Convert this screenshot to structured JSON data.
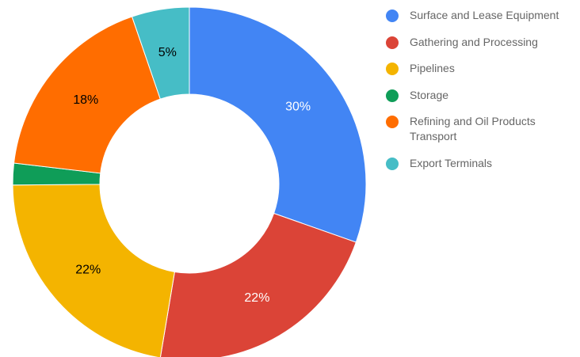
{
  "chart_data": {
    "type": "pie",
    "subtype": "donut",
    "title": "",
    "legend_position": "right",
    "start_angle_deg": 0,
    "direction": "clockwise",
    "slices": [
      {
        "name": "Surface and Lease Equipment",
        "value": 30.6,
        "label": "30%",
        "color": "#4285f4",
        "label_color": "#ffffff"
      },
      {
        "name": "Gathering and Processing",
        "value": 22.4,
        "label": "22%",
        "color": "#db4437",
        "label_color": "#ffffff"
      },
      {
        "name": "Pipelines",
        "value": 22.4,
        "label": "22%",
        "color": "#f4b400",
        "label_color": "#000000"
      },
      {
        "name": "Storage",
        "value": 2.0,
        "label": "",
        "color": "#0f9d58",
        "label_color": "#ffffff"
      },
      {
        "name": "Refining and Oil Products Transport",
        "value": 18.0,
        "label": "18%",
        "color": "#ff6d00",
        "label_color": "#000000"
      },
      {
        "name": "Export Terminals",
        "value": 5.3,
        "label": "5%",
        "color": "#46bdc6",
        "label_color": "#000000"
      }
    ]
  }
}
